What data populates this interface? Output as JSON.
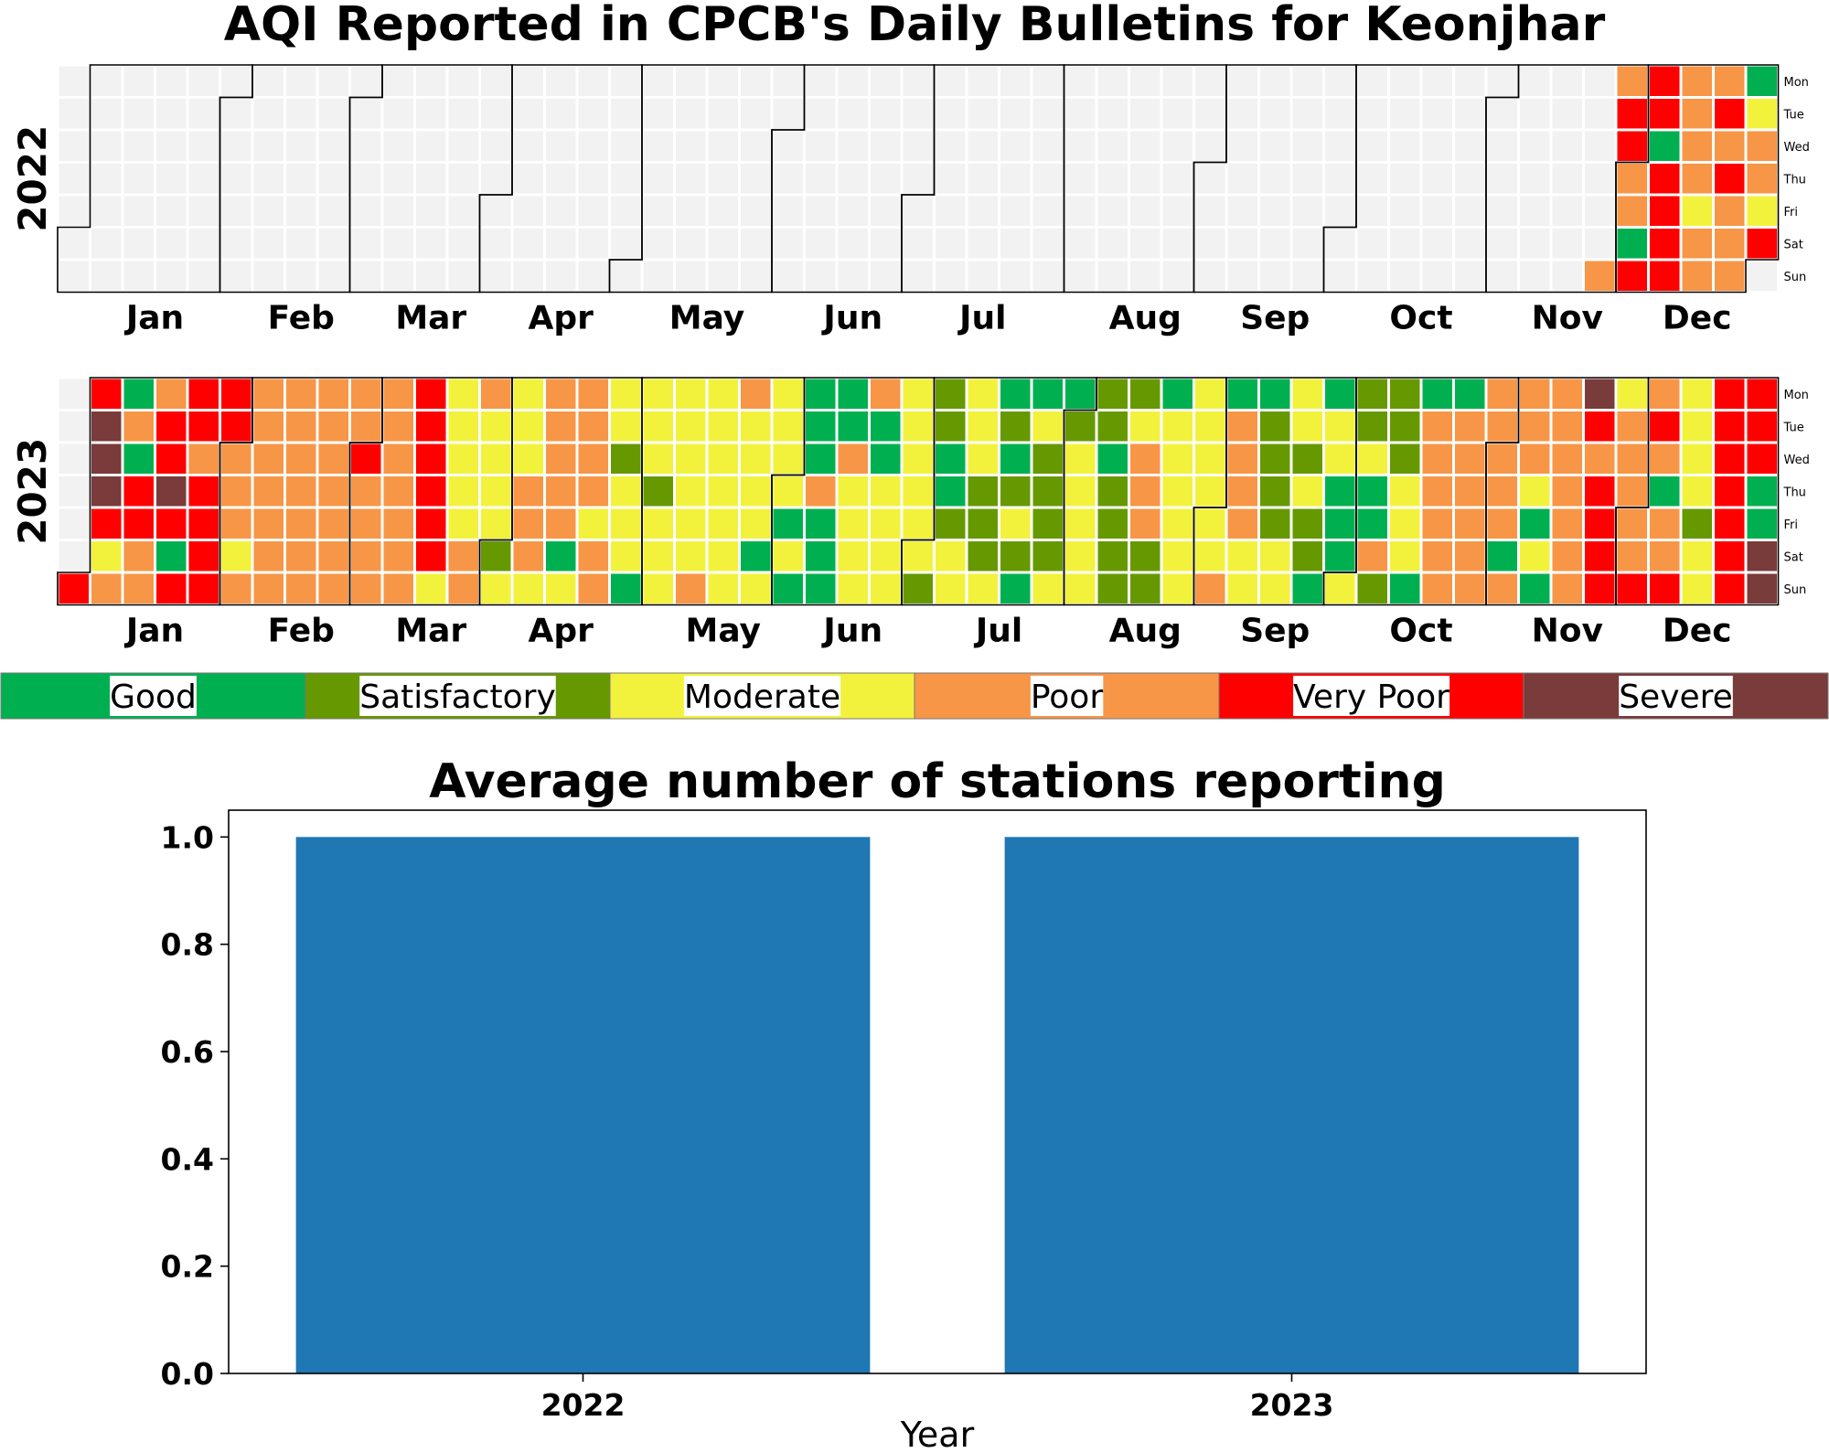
{
  "title": "AQI Reported in CPCB's Daily Bulletins for Keonjhar",
  "days": [
    "Mon",
    "Tue",
    "Wed",
    "Thu",
    "Fri",
    "Sat",
    "Sun"
  ],
  "months": [
    "Jan",
    "Feb",
    "Mar",
    "Apr",
    "May",
    "Jun",
    "Jul",
    "Aug",
    "Sep",
    "Oct",
    "Nov",
    "Dec"
  ],
  "categories": [
    {
      "key": "G",
      "label": "Good",
      "color": "#00b050"
    },
    {
      "key": "S",
      "label": "Satisfactory",
      "color": "#669900"
    },
    {
      "key": "M",
      "label": "Moderate",
      "color": "#f2f23d"
    },
    {
      "key": "P",
      "label": "Poor",
      "color": "#f79646"
    },
    {
      "key": "V",
      "label": "Very Poor",
      "color": "#ff0000"
    },
    {
      "key": "X",
      "label": "Severe",
      "color": "#7a3b3b"
    }
  ],
  "empty_color": "#f2f2f2",
  "chart_data": [
    {
      "type": "heatmap",
      "name": "2022",
      "description": "calendar heatmap, columns = weeks (Mon-Sun), rows = weekdays; only December reported",
      "year": 2022,
      "weeks": [
        ".......",
        ".......",
        ".......",
        ".......",
        ".......",
        ".......",
        ".......",
        ".......",
        ".......",
        ".......",
        ".......",
        ".......",
        ".......",
        ".......",
        ".......",
        ".......",
        ".......",
        ".......",
        ".......",
        ".......",
        ".......",
        ".......",
        ".......",
        ".......",
        ".......",
        ".......",
        ".......",
        ".......",
        ".......",
        ".......",
        ".......",
        ".......",
        ".......",
        ".......",
        ".......",
        ".......",
        ".......",
        ".......",
        ".......",
        ".......",
        ".......",
        ".......",
        ".......",
        ".......",
        ".......",
        ".......",
        ".......",
        "......P",
        "PVVPPGV",
        "VVGVVVV",
        "PPPPMPP",
        "PVPVPPP",
        "GMPPMV."
      ]
    },
    {
      "type": "heatmap",
      "name": "2023",
      "description": "calendar heatmap, columns = weeks (Mon-Sun), rows = weekdays",
      "year": 2023,
      "weeks": [
        "......V",
        "VXXXVMP",
        "GPGVVPP",
        "PVVXVGV",
        "VVPVVVV",
        "VVPPPMP",
        "PPPPPPP",
        "PPPPPPP",
        "PPPPPPP",
        "PPVPPPP",
        "PPPPPPP",
        "VVVVVVM",
        "MMMMMPP",
        "PMMMMSM",
        "MMMPPPM",
        "PPPPPGM",
        "PPPPMPP",
        "MMSMMMG",
        "MMMSMMM",
        "MMMMMMP",
        "MMMMMMM",
        "PMMMMGM",
        "MMMMGMG",
        "GGGPGGG",
        "GGPMMMM",
        "PGGMMMM",
        "MMMMMMS",
        "SSGGSMM",
        "MMMSSSM",
        "GSGSMSG",
        "GMSSSSM",
        "GSMMMMM",
        "SSGSSSS",
        "SMPPPSS",
        "GMMMMMM",
        "MMMMMMP",
        "GPPPPMM",
        "GSSSSMM",
        "MMSMSSG",
        "GMMGGGM",
        "SSMGGPS",
        "SSSMMMG",
        "GPPPPPP",
        "GPPPPPP",
        "PPPPPGP",
        "PPPMGMG",
        "PPPPPPP",
        "XVPVVVV",
        "MPPPPPV",
        "PVPGPPV",
        "MMMMSMM",
        "VVVVVVV",
        "VVVGGXX"
      ]
    },
    {
      "type": "bar",
      "title": "Average number of stations reporting",
      "xlabel": "Year",
      "ylabel": "",
      "categories": [
        "2022",
        "2023"
      ],
      "values": [
        1.0,
        1.0
      ],
      "ylim": [
        0.0,
        1.05
      ],
      "yticks": [
        "0.0",
        "0.2",
        "0.4",
        "0.6",
        "0.8",
        "1.0"
      ],
      "color": "#1f77b4"
    }
  ]
}
